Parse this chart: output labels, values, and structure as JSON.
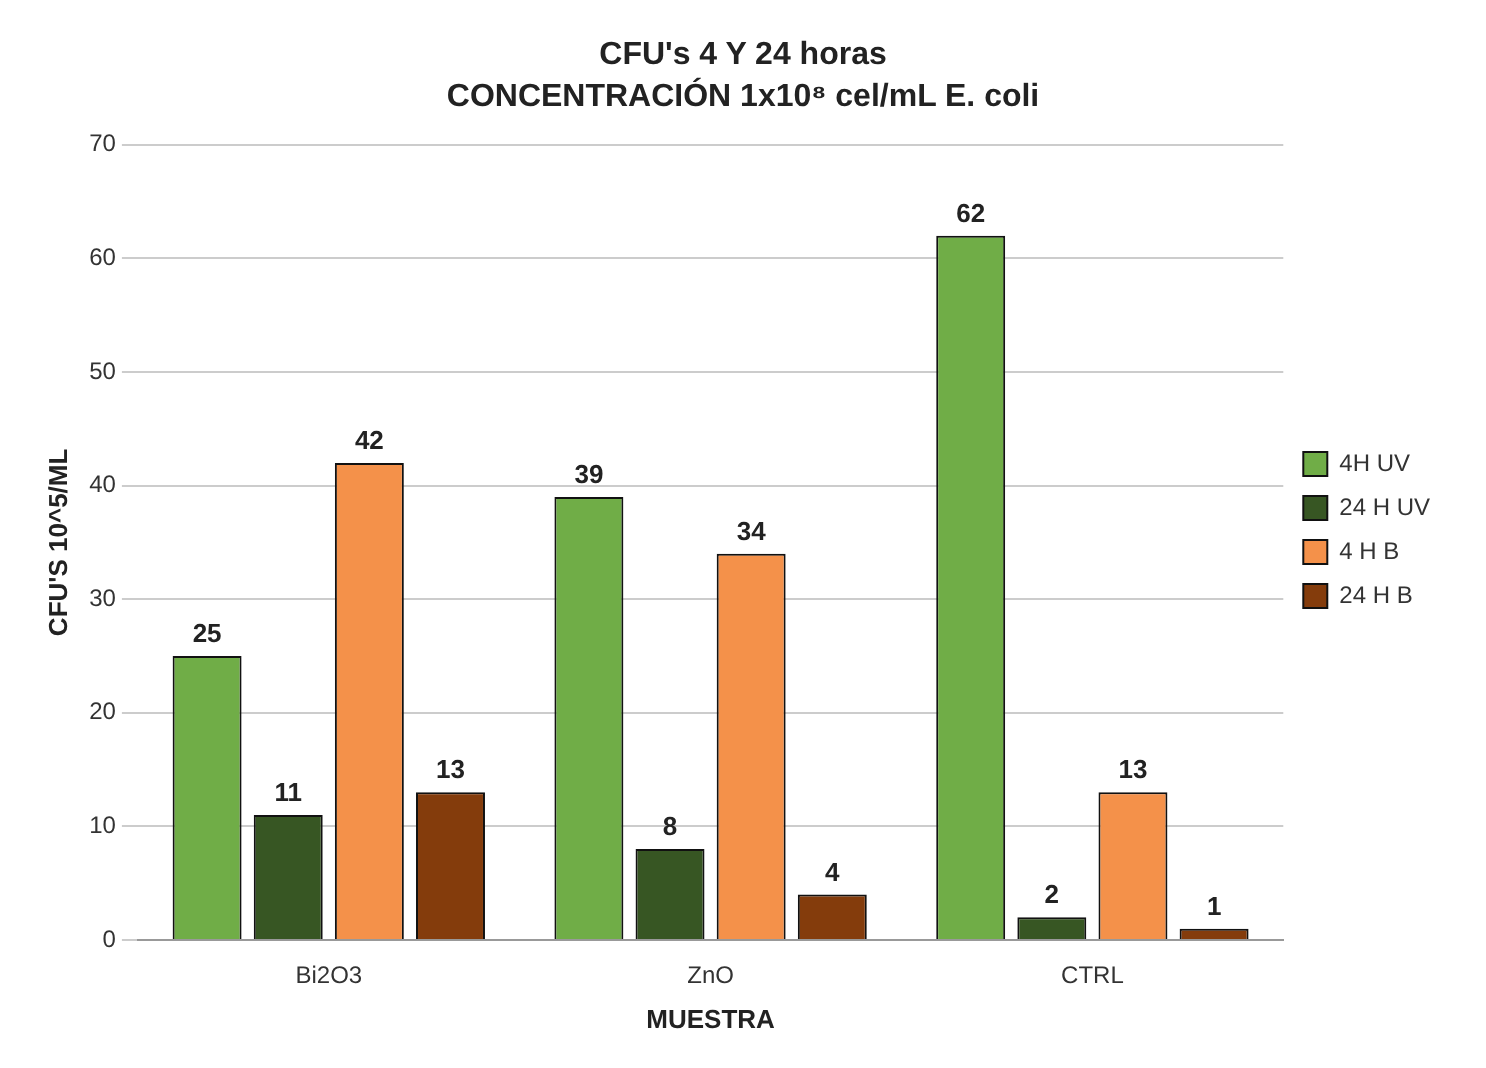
{
  "chart_data": {
    "type": "bar",
    "title": "CFU's 4 Y 24 horas",
    "subtitle": "CONCENTRACIÓN 1x10⁸ cel/mL E. coli",
    "xlabel": "MUESTRA",
    "ylabel": "CFU'S 10^5/ML",
    "categories": [
      "Bi2O3",
      "ZnO",
      "CTRL"
    ],
    "series": [
      {
        "name": "4H UV",
        "color": "#70ad47",
        "values": [
          25,
          39,
          62
        ]
      },
      {
        "name": "24 H UV",
        "color": "#375623",
        "values": [
          11,
          8,
          2
        ]
      },
      {
        "name": "4 H B",
        "color": "#f4914a",
        "values": [
          42,
          34,
          13
        ]
      },
      {
        "name": "24 H B",
        "color": "#843c0c",
        "values": [
          13,
          4,
          1
        ]
      }
    ],
    "ylim": [
      0,
      70
    ],
    "yticks": [
      0,
      10,
      20,
      30,
      40,
      50,
      60,
      70
    ],
    "grid": "y",
    "legend": "right",
    "data_labels": true
  }
}
